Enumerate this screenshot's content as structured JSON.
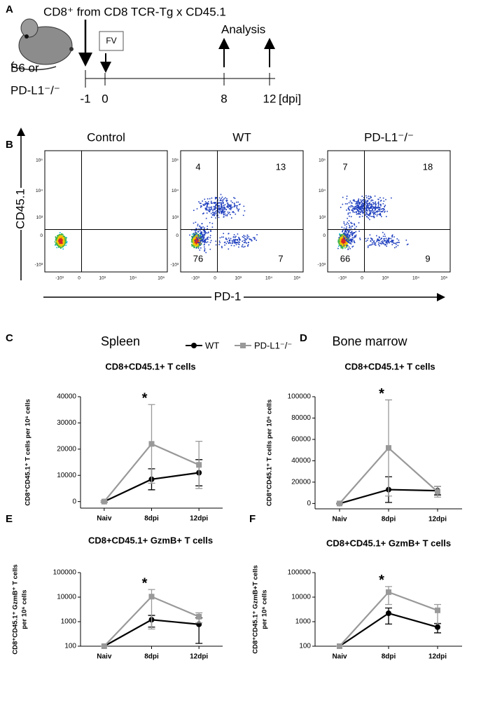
{
  "panel_labels": [
    "A",
    "B",
    "C",
    "D",
    "E",
    "F"
  ],
  "timeline": {
    "header": "CD8⁺ from CD8 TCR-Tg x CD45.1",
    "treatment": "FV",
    "analysis": "Analysis",
    "hosts": [
      "B6 or",
      "PD-L1⁻/⁻"
    ],
    "days": [
      "-1",
      "0",
      "8",
      "12"
    ],
    "unit": "[dpi]"
  },
  "flow": {
    "x_label": "PD-1",
    "y_label": "CD45.1",
    "y_ticks": [
      "10⁵",
      "10⁴",
      "10³",
      "0",
      "-10³"
    ],
    "x_ticks": [
      "-10³",
      "0",
      "10³",
      "10⁴",
      "10⁵"
    ],
    "plots": [
      {
        "title": "Control"
      },
      {
        "title": "WT",
        "quadrants": [
          4,
          13,
          76,
          7
        ]
      },
      {
        "title": "PD-L1⁻/⁻",
        "quadrants": [
          7,
          18,
          66,
          9
        ]
      }
    ]
  },
  "chart_data": [
    {
      "type": "line",
      "subtitle": "Spleen",
      "title": "CD8+CD45.1+ T cells",
      "ylabel": "CD8⁺CD45.1⁺ T cells per 10⁶ cells",
      "categories": [
        "Naiv",
        "8dpi",
        "12dpi"
      ],
      "series": [
        {
          "name": "WT",
          "color": "#000000",
          "marker": "circle",
          "values": [
            0,
            8500,
            11000
          ],
          "errors": [
            300,
            4000,
            5000
          ]
        },
        {
          "name": "PD-L1⁻/⁻",
          "color": "#999999",
          "marker": "square",
          "values": [
            0,
            22000,
            14000
          ],
          "errors": [
            300,
            15000,
            9000
          ]
        }
      ],
      "ylim": [
        -2500,
        40000
      ],
      "yticks": [
        0,
        10000,
        20000,
        30000,
        40000
      ],
      "annotation": "*",
      "legend": "top"
    },
    {
      "type": "line",
      "subtitle": "Bone marrow",
      "title": "CD8+CD45.1+ T cells",
      "ylabel": "CD8⁺CD45.1⁺ T cells per 10⁶ cells",
      "categories": [
        "Naiv",
        "8dpi",
        "12dpi"
      ],
      "series": [
        {
          "color": "#000000",
          "marker": "circle",
          "values": [
            0,
            13000,
            12000
          ],
          "errors": [
            500,
            12000,
            4000
          ]
        },
        {
          "color": "#999999",
          "marker": "square",
          "values": [
            0,
            52000,
            11000
          ],
          "errors": [
            500,
            45000,
            5000
          ]
        }
      ],
      "ylim": [
        -5000,
        100000
      ],
      "yticks": [
        0,
        20000,
        40000,
        60000,
        80000,
        100000
      ],
      "annotation": "*"
    },
    {
      "type": "line",
      "title": "CD8+CD45.1+ GzmB+ T cells",
      "ylabel": [
        "CD8⁺CD45.1⁺ GzmB⁺ T cells",
        "per 10⁶ cells"
      ],
      "categories": [
        "Naiv",
        "8dpi",
        "12dpi"
      ],
      "log_y": true,
      "series": [
        {
          "color": "#000000",
          "marker": "circle",
          "values": [
            100,
            1200,
            780
          ],
          "errors": [
            0,
            600,
            650
          ]
        },
        {
          "color": "#999999",
          "marker": "square",
          "values": [
            100,
            10500,
            1600
          ],
          "errors": [
            0,
            10000,
            700
          ]
        }
      ],
      "ylim": [
        100,
        100000
      ],
      "yticks": [
        100,
        1000,
        10000,
        100000
      ],
      "annotation": "*"
    },
    {
      "type": "line",
      "title": "CD8+CD45.1+ GzmB+ T cells",
      "ylabel": [
        "CD8⁺CD45.1⁺ GzmB+T cells",
        "per 10⁶ cells"
      ],
      "categories": [
        "Naiv",
        "8dpi",
        "12dpi"
      ],
      "log_y": true,
      "series": [
        {
          "color": "#000000",
          "marker": "circle",
          "values": [
            100,
            2200,
            600
          ],
          "errors": [
            0,
            1400,
            250
          ]
        },
        {
          "color": "#999999",
          "marker": "square",
          "values": [
            100,
            16000,
            2900
          ],
          "errors": [
            0,
            11000,
            2100
          ]
        }
      ],
      "ylim": [
        100,
        100000
      ],
      "yticks": [
        100,
        1000,
        10000,
        100000
      ],
      "annotation": "*"
    }
  ]
}
